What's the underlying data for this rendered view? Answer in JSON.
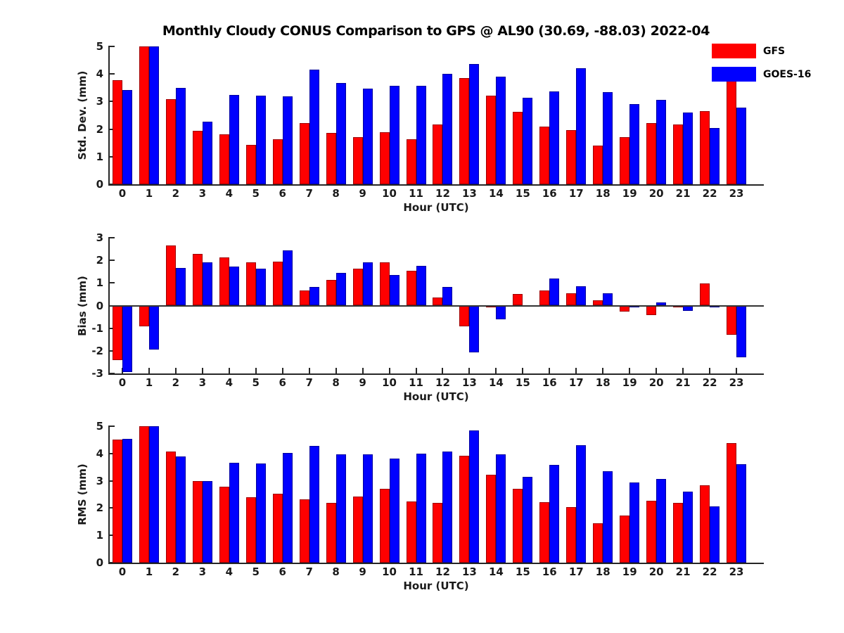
{
  "title": "Monthly Cloudy CONUS Comparison to GPS @ AL90 (30.69, -88.03) 2022-04",
  "legend": [
    {
      "label": "GFS",
      "color": "#ff0000"
    },
    {
      "label": "GOES-16",
      "color": "#0000ff"
    }
  ],
  "xlabel": "Hour (UTC)",
  "colors": {
    "gfs": "#ff0000",
    "goes16": "#0000ff",
    "axis": "#262626",
    "background": "#ffffff"
  },
  "chart_data": [
    {
      "type": "bar",
      "title": "",
      "ylabel": "Std. Dev. (mm)",
      "xlabel": "Hour (UTC)",
      "ylim": [
        0,
        5
      ],
      "yticks": [
        0,
        1,
        2,
        3,
        4,
        5
      ],
      "categories": [
        0,
        1,
        2,
        3,
        4,
        5,
        6,
        7,
        8,
        9,
        10,
        11,
        12,
        13,
        14,
        15,
        16,
        17,
        18,
        19,
        20,
        21,
        22,
        23
      ],
      "legend_position": "top-right",
      "grid": false,
      "series": [
        {
          "name": "GFS",
          "color": "#ff0000",
          "values": [
            3.78,
            5.0,
            3.08,
            1.93,
            1.8,
            1.43,
            1.62,
            2.23,
            1.87,
            1.72,
            1.9,
            1.62,
            2.16,
            3.84,
            3.22,
            2.64,
            2.1,
            1.97,
            1.4,
            1.7,
            2.22,
            2.18,
            2.66,
            4.2
          ]
        },
        {
          "name": "GOES-16",
          "color": "#0000ff",
          "values": [
            3.43,
            5.0,
            3.5,
            2.28,
            3.23,
            3.22,
            3.2,
            4.15,
            3.68,
            3.46,
            3.56,
            3.58,
            4.0,
            4.36,
            3.9,
            3.13,
            3.36,
            4.21,
            3.35,
            2.91,
            3.05,
            2.59,
            2.05,
            2.79
          ]
        }
      ]
    },
    {
      "type": "bar",
      "title": "",
      "ylabel": "Bias (mm)",
      "xlabel": "Hour (UTC)",
      "ylim": [
        -3,
        3
      ],
      "yticks": [
        -3,
        -2,
        -1,
        0,
        1,
        2,
        3
      ],
      "categories": [
        0,
        1,
        2,
        3,
        4,
        5,
        6,
        7,
        8,
        9,
        10,
        11,
        12,
        13,
        14,
        15,
        16,
        17,
        18,
        19,
        20,
        21,
        22,
        23
      ],
      "grid": false,
      "series": [
        {
          "name": "GFS",
          "color": "#ff0000",
          "values": [
            -2.42,
            -0.93,
            2.65,
            2.28,
            2.12,
            1.9,
            1.95,
            0.67,
            1.15,
            1.64,
            1.9,
            1.55,
            0.37,
            -0.93,
            -0.06,
            0.52,
            0.66,
            0.55,
            0.22,
            -0.26,
            -0.42,
            -0.05,
            0.98,
            -1.3
          ]
        },
        {
          "name": "GOES-16",
          "color": "#0000ff",
          "values": [
            -2.93,
            -1.93,
            1.67,
            1.92,
            1.73,
            1.64,
            2.45,
            0.82,
            1.45,
            1.92,
            1.35,
            1.77,
            0.81,
            -2.07,
            -0.62,
            0.0,
            1.2,
            0.86,
            0.55,
            -0.06,
            0.13,
            -0.22,
            -0.07,
            -2.28
          ]
        }
      ]
    },
    {
      "type": "bar",
      "title": "",
      "ylabel": "RMS (mm)",
      "xlabel": "Hour (UTC)",
      "ylim": [
        0,
        5
      ],
      "yticks": [
        0,
        1,
        2,
        3,
        4,
        5
      ],
      "categories": [
        0,
        1,
        2,
        3,
        4,
        5,
        6,
        7,
        8,
        9,
        10,
        11,
        12,
        13,
        14,
        15,
        16,
        17,
        18,
        19,
        20,
        21,
        22,
        23
      ],
      "grid": false,
      "series": [
        {
          "name": "GFS",
          "color": "#ff0000",
          "values": [
            4.5,
            5.0,
            4.08,
            2.98,
            2.79,
            2.4,
            2.52,
            2.32,
            2.19,
            2.41,
            2.7,
            2.24,
            2.18,
            3.91,
            3.21,
            2.7,
            2.21,
            2.03,
            1.45,
            1.73,
            2.26,
            2.18,
            2.83,
            4.38
          ]
        },
        {
          "name": "GOES-16",
          "color": "#0000ff",
          "values": [
            4.53,
            5.0,
            3.9,
            2.99,
            3.66,
            3.63,
            4.03,
            4.27,
            3.96,
            3.97,
            3.82,
            3.99,
            4.08,
            4.85,
            3.96,
            3.14,
            3.58,
            4.31,
            3.36,
            2.93,
            3.07,
            2.6,
            2.06,
            3.6
          ]
        }
      ]
    }
  ]
}
